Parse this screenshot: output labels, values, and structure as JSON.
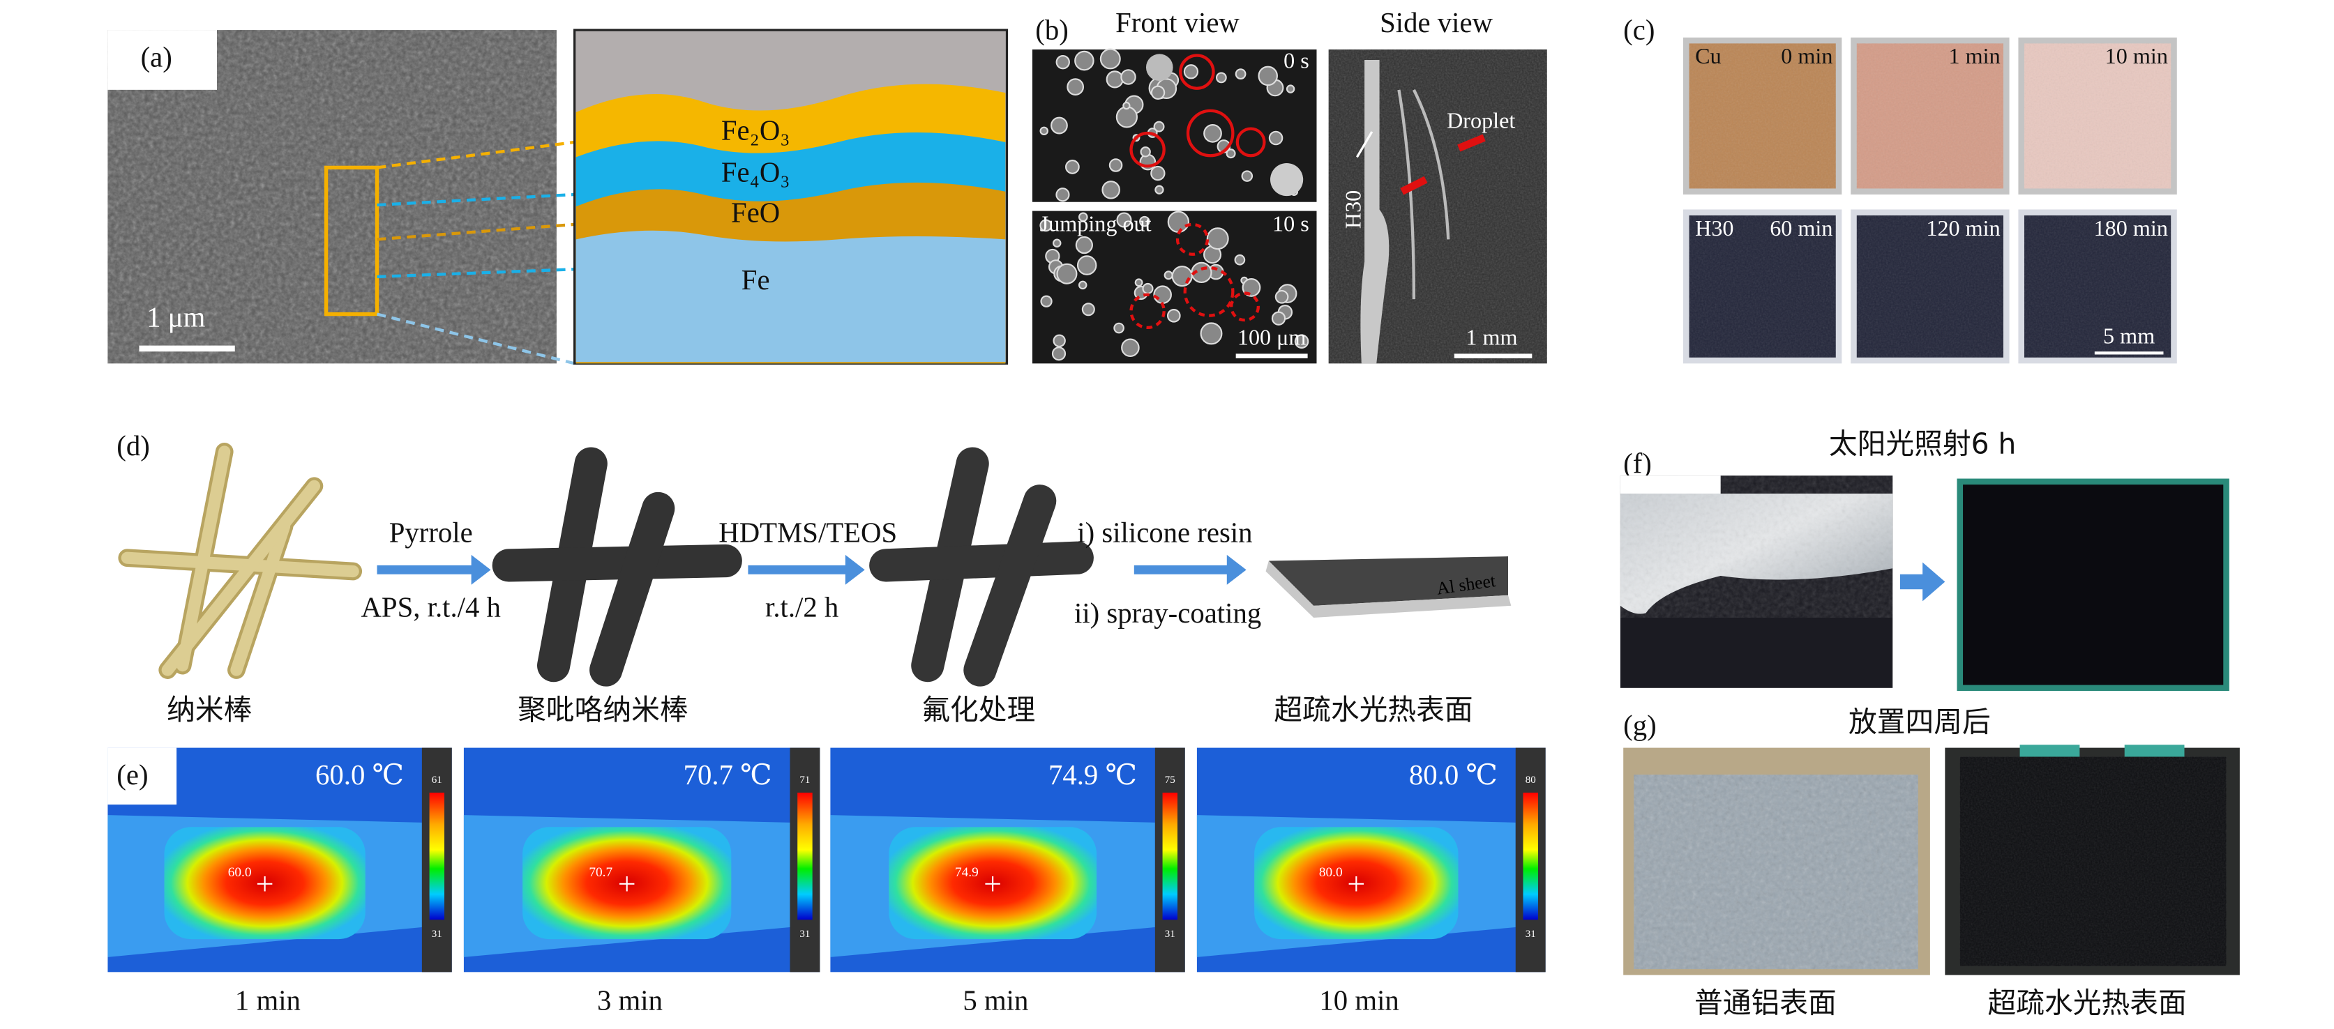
{
  "panel_a": {
    "label": "(a)",
    "scale_bar": "1 μm",
    "layers": [
      "Fe₂O₃",
      "Fe₄O₃",
      "FeO",
      "Fe"
    ]
  },
  "panel_b": {
    "label": "(b)",
    "front_view": "Front view",
    "side_view": "Side view",
    "time_top": "0 s",
    "caption_bottom": "Jumping out",
    "time_bottom": "10 s",
    "scale_front": "100 μm",
    "sample": "H30",
    "droplet": "Droplet",
    "scale_side": "1 mm"
  },
  "panel_c": {
    "label": "(c)",
    "rows": [
      {
        "sample": "Cu",
        "times": [
          "0 min",
          "1 min",
          "10 min"
        ]
      },
      {
        "sample": "H30",
        "times": [
          "60 min",
          "120 min",
          "180 min"
        ]
      }
    ],
    "scale_bar": "5 mm"
  },
  "panel_d": {
    "label": "(d)",
    "step1_top": "Pyrrole",
    "step1_bottom": "APS, r.t./4 h",
    "step2_top": "HDTMS/TEOS",
    "step2_bottom": "r.t./2 h",
    "step3_top": "i) silicone resin",
    "step3_bottom": "ii) spray-coating",
    "substrate": "Al sheet",
    "stages": [
      "纳米棒",
      "聚吡咯纳米棒",
      "氟化处理",
      "超疏水光热表面"
    ]
  },
  "panel_e": {
    "label": "(e)",
    "frames": [
      {
        "temperature": "60.0 ℃",
        "spot": "60.0",
        "scale_max": "61",
        "time": "1 min"
      },
      {
        "temperature": "70.7 ℃",
        "spot": "70.7",
        "scale_max": "71",
        "time": "3 min"
      },
      {
        "temperature": "74.9 ℃",
        "spot": "74.9",
        "scale_max": "75",
        "time": "5 min"
      },
      {
        "temperature": "80.0 ℃",
        "spot": "80.0",
        "scale_max": "80",
        "time": "10 min"
      }
    ],
    "scale_min": "31"
  },
  "panel_f": {
    "label": "(f)",
    "title": "太阳光照射6 h"
  },
  "panel_g": {
    "label": "(g)",
    "title": "放置四周后",
    "captions": [
      "普通铝表面",
      "超疏水光热表面"
    ]
  }
}
